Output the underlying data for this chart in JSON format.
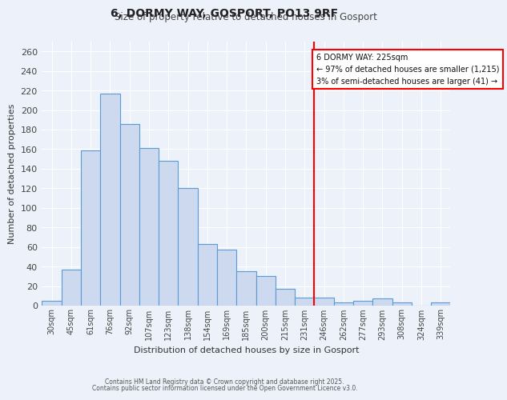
{
  "title": "6, DORMY WAY, GOSPORT, PO13 9RF",
  "subtitle": "Size of property relative to detached houses in Gosport",
  "xlabel": "Distribution of detached houses by size in Gosport",
  "ylabel": "Number of detached properties",
  "bar_labels": [
    "30sqm",
    "45sqm",
    "61sqm",
    "76sqm",
    "92sqm",
    "107sqm",
    "123sqm",
    "138sqm",
    "154sqm",
    "169sqm",
    "185sqm",
    "200sqm",
    "215sqm",
    "231sqm",
    "246sqm",
    "262sqm",
    "277sqm",
    "293sqm",
    "308sqm",
    "324sqm",
    "339sqm"
  ],
  "bar_values": [
    5,
    37,
    159,
    217,
    186,
    161,
    148,
    120,
    63,
    57,
    35,
    30,
    17,
    8,
    8,
    3,
    5,
    7,
    3,
    0,
    3
  ],
  "bar_color": "#ccd9ee",
  "bar_edge_color": "#5b9bd5",
  "vline_x": 13.5,
  "vline_color": "red",
  "annotation_title": "6 DORMY WAY: 225sqm",
  "annotation_line1": "← 97% of detached houses are smaller (1,215)",
  "annotation_line2": "3% of semi-detached houses are larger (41) →",
  "annotation_box_color": "white",
  "annotation_box_edge_color": "red",
  "ylim": [
    0,
    270
  ],
  "ytick_step": 20,
  "background_color": "#edf2fa",
  "grid_color": "white",
  "footnote1": "Contains HM Land Registry data © Crown copyright and database right 2025.",
  "footnote2": "Contains public sector information licensed under the Open Government Licence v3.0."
}
